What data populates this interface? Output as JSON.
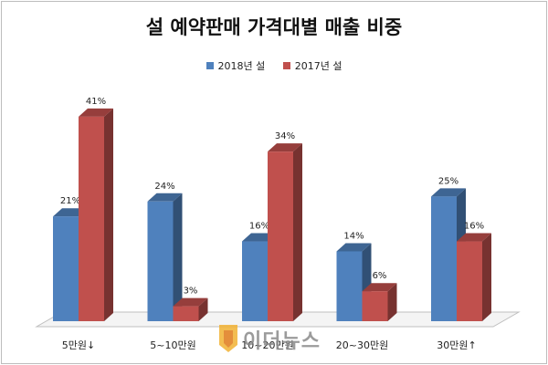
{
  "chart_data": {
    "type": "bar",
    "title": "설 예약판매 가격대별 매출 비중",
    "categories": [
      "5만원↓",
      "5~10만원",
      "10~20만원",
      "20~30만원",
      "30만원↑"
    ],
    "series": [
      {
        "name": "2018년 설",
        "values": [
          21,
          24,
          16,
          14,
          25
        ],
        "labels": [
          "21%",
          "24%",
          "16%",
          "14%",
          "25%"
        ]
      },
      {
        "name": "2017년 설",
        "values": [
          41,
          3,
          34,
          6,
          16
        ],
        "labels": [
          "41%",
          "3%",
          "34%",
          "6%",
          "16%"
        ]
      }
    ],
    "ylim": [
      0,
      45
    ],
    "legend_position": "top",
    "grid": false,
    "three_d": true
  },
  "colors": {
    "series_2018": "#4f81bd",
    "series_2017": "#c0504d"
  },
  "watermark": {
    "text": "이더뉴스"
  }
}
